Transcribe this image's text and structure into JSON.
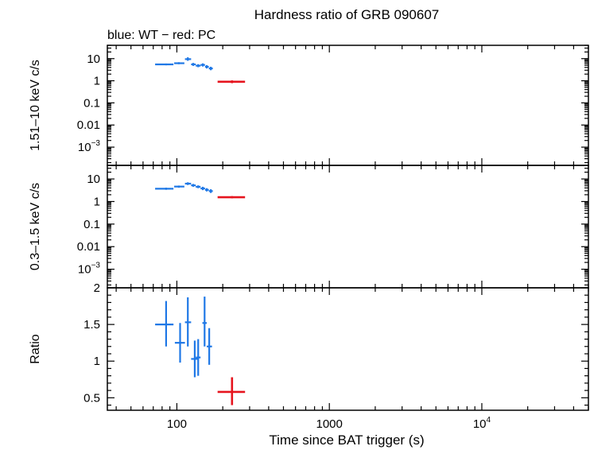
{
  "chart_data": {
    "type": "scatter",
    "title": "Hardness ratio of GRB 090607",
    "subtitle": "blue: WT − red: PC",
    "xlabel": "Time since BAT trigger (s)",
    "xscale": "log",
    "xlim": [
      35,
      50000
    ],
    "x_ticks": [
      {
        "value": 100,
        "label": "100"
      },
      {
        "value": 1000,
        "label": "1000"
      },
      {
        "value": 10000,
        "label": "10",
        "exp": "4"
      }
    ],
    "colors": {
      "WT": "#1f78e6",
      "PC": "#e6141e"
    },
    "panels": [
      {
        "id": "hard",
        "ylabel": "1.51–10 keV c/s",
        "yscale": "log",
        "ylim": [
          0.00015,
          40
        ],
        "y_ticks": [
          {
            "value": 10,
            "label": "10"
          },
          {
            "value": 1,
            "label": "1"
          },
          {
            "value": 0.1,
            "label": "0.1"
          },
          {
            "value": 0.01,
            "label": "0.01"
          },
          {
            "value": 0.001,
            "label": "10",
            "exp": "−3"
          }
        ],
        "series": [
          {
            "group": "WT",
            "points": [
              {
                "x": 85,
                "xlo": 72,
                "xhi": 95,
                "y": 5.5,
                "ylo": 5.0,
                "yhi": 6.0
              },
              {
                "x": 103,
                "xlo": 96,
                "xhi": 112,
                "y": 6.2,
                "ylo": 5.6,
                "yhi": 6.9
              },
              {
                "x": 118,
                "xlo": 113,
                "xhi": 124,
                "y": 9.5,
                "ylo": 8.0,
                "yhi": 11.5
              },
              {
                "x": 128,
                "xlo": 124,
                "xhi": 133,
                "y": 5.5,
                "ylo": 4.7,
                "yhi": 6.4
              },
              {
                "x": 138,
                "xlo": 133,
                "xhi": 143,
                "y": 4.8,
                "ylo": 4.1,
                "yhi": 5.6
              },
              {
                "x": 148,
                "xlo": 143,
                "xhi": 153,
                "y": 5.2,
                "ylo": 4.4,
                "yhi": 6.1
              },
              {
                "x": 157,
                "xlo": 153,
                "xhi": 162,
                "y": 4.3,
                "ylo": 3.6,
                "yhi": 5.1
              },
              {
                "x": 167,
                "xlo": 162,
                "xhi": 172,
                "y": 3.6,
                "ylo": 3.0,
                "yhi": 4.3
              }
            ]
          },
          {
            "group": "PC",
            "points": [
              {
                "x": 230,
                "xlo": 185,
                "xhi": 280,
                "y": 0.9,
                "ylo": 0.78,
                "yhi": 1.04
              }
            ]
          }
        ]
      },
      {
        "id": "soft",
        "ylabel": "0.3–1.5 keV c/s",
        "yscale": "log",
        "ylim": [
          0.00015,
          40
        ],
        "y_ticks": [
          {
            "value": 10,
            "label": "10"
          },
          {
            "value": 1,
            "label": "1"
          },
          {
            "value": 0.1,
            "label": "0.1"
          },
          {
            "value": 0.01,
            "label": "0.01"
          },
          {
            "value": 0.001,
            "label": "10",
            "exp": "−3"
          }
        ],
        "series": [
          {
            "group": "WT",
            "points": [
              {
                "x": 85,
                "xlo": 72,
                "xhi": 95,
                "y": 3.7,
                "ylo": 3.3,
                "yhi": 4.1
              },
              {
                "x": 103,
                "xlo": 96,
                "xhi": 112,
                "y": 4.6,
                "ylo": 4.1,
                "yhi": 5.1
              },
              {
                "x": 118,
                "xlo": 113,
                "xhi": 124,
                "y": 6.2,
                "ylo": 5.4,
                "yhi": 7.1
              },
              {
                "x": 128,
                "xlo": 124,
                "xhi": 133,
                "y": 5.2,
                "ylo": 4.5,
                "yhi": 6.0
              },
              {
                "x": 138,
                "xlo": 133,
                "xhi": 143,
                "y": 4.5,
                "ylo": 3.9,
                "yhi": 5.2
              },
              {
                "x": 148,
                "xlo": 143,
                "xhi": 153,
                "y": 3.8,
                "ylo": 3.2,
                "yhi": 4.5
              },
              {
                "x": 157,
                "xlo": 153,
                "xhi": 162,
                "y": 3.3,
                "ylo": 2.8,
                "yhi": 3.9
              },
              {
                "x": 167,
                "xlo": 162,
                "xhi": 172,
                "y": 2.9,
                "ylo": 2.4,
                "yhi": 3.5
              }
            ]
          },
          {
            "group": "PC",
            "points": [
              {
                "x": 230,
                "xlo": 185,
                "xhi": 280,
                "y": 1.55,
                "ylo": 1.38,
                "yhi": 1.73
              }
            ]
          }
        ]
      },
      {
        "id": "ratio",
        "ylabel": "Ratio",
        "yscale": "linear",
        "ylim": [
          0.33,
          2.0
        ],
        "y_ticks": [
          {
            "value": 0.5,
            "label": "0.5"
          },
          {
            "value": 1,
            "label": "1"
          },
          {
            "value": 1.5,
            "label": "1.5"
          },
          {
            "value": 2,
            "label": "2"
          }
        ],
        "series": [
          {
            "group": "WT",
            "points": [
              {
                "x": 85,
                "xlo": 72,
                "xhi": 95,
                "y": 1.5,
                "ylo": 1.2,
                "yhi": 1.82
              },
              {
                "x": 105,
                "xlo": 97,
                "xhi": 113,
                "y": 1.25,
                "ylo": 0.98,
                "yhi": 1.52
              },
              {
                "x": 118,
                "xlo": 113,
                "xhi": 124,
                "y": 1.53,
                "ylo": 1.2,
                "yhi": 1.87
              },
              {
                "x": 131,
                "xlo": 124,
                "xhi": 138,
                "y": 1.03,
                "ylo": 0.78,
                "yhi": 1.28
              },
              {
                "x": 138,
                "xlo": 133,
                "xhi": 143,
                "y": 1.05,
                "ylo": 0.8,
                "yhi": 1.3
              },
              {
                "x": 152,
                "xlo": 147,
                "xhi": 157,
                "y": 1.52,
                "ylo": 1.2,
                "yhi": 1.88
              },
              {
                "x": 163,
                "xlo": 157,
                "xhi": 170,
                "y": 1.2,
                "ylo": 0.95,
                "yhi": 1.45
              }
            ]
          },
          {
            "group": "PC",
            "points": [
              {
                "x": 230,
                "xlo": 185,
                "xhi": 280,
                "y": 0.58,
                "ylo": 0.4,
                "yhi": 0.78
              }
            ]
          }
        ]
      }
    ]
  }
}
